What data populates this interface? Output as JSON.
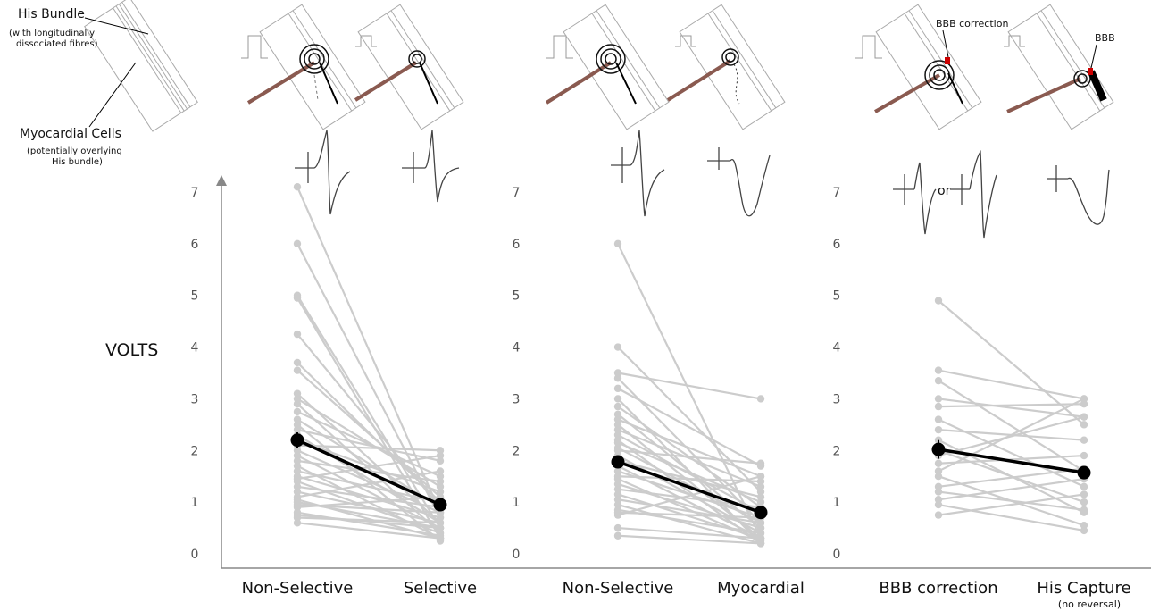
{
  "ylabel": "VOLTS",
  "legend": {
    "his_bundle_label": "His Bundle",
    "his_bundle_sub1": "(with longitudinally",
    "his_bundle_sub2": "dissociated fibres)",
    "myocardial_label": "Myocardial Cells",
    "myocardial_sub1": "(potentially overlying",
    "myocardial_sub2": "His bundle)"
  },
  "annotations": {
    "bbb_correction": "BBB correction",
    "bbb": "BBB",
    "or": "or"
  },
  "colors": {
    "individual": "#cccccc",
    "mean": "#000000",
    "axis": "#888888"
  },
  "chart_data": [
    {
      "type": "line",
      "categories": [
        "Non-Selective",
        "Selective"
      ],
      "ylim": [
        0,
        7
      ],
      "yticks": [
        0,
        1,
        2,
        3,
        4,
        5,
        6,
        7
      ],
      "individual_pairs": [
        [
          7.1,
          0.8
        ],
        [
          6.0,
          0.7
        ],
        [
          5.0,
          0.5
        ],
        [
          4.95,
          0.3
        ],
        [
          4.25,
          0.9
        ],
        [
          3.7,
          1.0
        ],
        [
          3.55,
          1.1
        ],
        [
          3.1,
          0.6
        ],
        [
          3.0,
          1.3
        ],
        [
          2.9,
          0.4
        ],
        [
          2.75,
          1.5
        ],
        [
          2.6,
          0.9
        ],
        [
          2.5,
          0.25
        ],
        [
          2.4,
          1.8
        ],
        [
          2.3,
          0.6
        ],
        [
          2.2,
          1.2
        ],
        [
          2.1,
          2.0
        ],
        [
          2.0,
          0.8
        ],
        [
          1.9,
          0.5
        ],
        [
          1.8,
          1.4
        ],
        [
          1.7,
          0.3
        ],
        [
          1.6,
          1.0
        ],
        [
          1.5,
          0.7
        ],
        [
          1.45,
          1.9
        ],
        [
          1.4,
          0.4
        ],
        [
          1.3,
          0.9
        ],
        [
          1.2,
          0.6
        ],
        [
          1.1,
          1.6
        ],
        [
          1.05,
          0.3
        ],
        [
          1.0,
          0.5
        ],
        [
          0.95,
          0.8
        ],
        [
          0.9,
          1.1
        ],
        [
          0.8,
          0.35
        ],
        [
          0.75,
          0.5
        ],
        [
          0.7,
          0.6
        ],
        [
          0.6,
          0.3
        ]
      ],
      "mean": [
        2.2,
        0.95
      ],
      "mean_error": [
        0.15,
        0.08
      ]
    },
    {
      "type": "line",
      "categories": [
        "Non-Selective",
        "Myocardial"
      ],
      "ylim": [
        0,
        7
      ],
      "yticks": [
        0,
        1,
        2,
        3,
        4,
        5,
        6,
        7
      ],
      "individual_pairs": [
        [
          6.0,
          0.3
        ],
        [
          4.0,
          1.2
        ],
        [
          3.5,
          3.0
        ],
        [
          3.4,
          0.6
        ],
        [
          3.2,
          1.7
        ],
        [
          3.0,
          0.2
        ],
        [
          2.85,
          0.9
        ],
        [
          2.7,
          0.5
        ],
        [
          2.6,
          1.5
        ],
        [
          2.5,
          0.3
        ],
        [
          2.4,
          1.3
        ],
        [
          2.3,
          0.8
        ],
        [
          2.2,
          0.2
        ],
        [
          2.15,
          1.0
        ],
        [
          2.05,
          0.6
        ],
        [
          2.0,
          1.75
        ],
        [
          1.9,
          0.4
        ],
        [
          1.8,
          1.1
        ],
        [
          1.7,
          0.3
        ],
        [
          1.6,
          0.7
        ],
        [
          1.5,
          1.4
        ],
        [
          1.45,
          0.25
        ],
        [
          1.35,
          0.5
        ],
        [
          1.25,
          0.9
        ],
        [
          1.15,
          0.3
        ],
        [
          1.05,
          0.6
        ],
        [
          0.95,
          0.2
        ],
        [
          0.85,
          0.4
        ],
        [
          0.8,
          0.7
        ],
        [
          0.75,
          1.5
        ],
        [
          0.5,
          0.3
        ],
        [
          0.35,
          0.2
        ]
      ],
      "mean": [
        1.78,
        0.8
      ],
      "mean_error": [
        0.12,
        0.08
      ]
    },
    {
      "type": "line",
      "categories": [
        "BBB correction",
        "His Capture"
      ],
      "category_notes": [
        "",
        "(no reversal)"
      ],
      "ylim": [
        0,
        7
      ],
      "yticks": [
        0,
        1,
        2,
        3,
        4,
        5,
        6,
        7
      ],
      "individual_pairs": [
        [
          4.9,
          2.5
        ],
        [
          3.55,
          3.0
        ],
        [
          3.35,
          1.6
        ],
        [
          3.0,
          2.65
        ],
        [
          2.85,
          2.9
        ],
        [
          2.6,
          1.3
        ],
        [
          2.4,
          2.2
        ],
        [
          2.2,
          0.8
        ],
        [
          2.0,
          1.0
        ],
        [
          1.9,
          2.65
        ],
        [
          1.75,
          1.9
        ],
        [
          1.6,
          3.0
        ],
        [
          1.5,
          0.55
        ],
        [
          1.3,
          1.65
        ],
        [
          1.2,
          0.85
        ],
        [
          1.05,
          1.45
        ],
        [
          0.95,
          0.45
        ],
        [
          0.75,
          1.15
        ]
      ],
      "mean": [
        2.02,
        1.57
      ],
      "mean_error": [
        0.18,
        0.12
      ]
    }
  ]
}
